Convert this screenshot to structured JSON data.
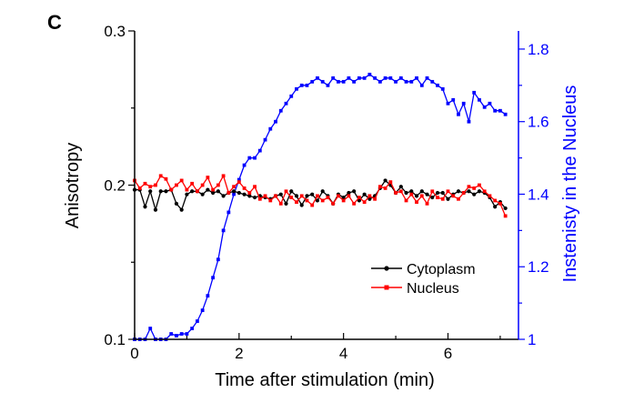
{
  "chart_data": {
    "type": "line",
    "panel_label": "C",
    "xlabel": "Time after stimulation (min)",
    "ylabel": "Anisotropy",
    "y2label": "Instenisty in the Nucleus",
    "xlim": [
      0,
      7.35
    ],
    "ylim": [
      0.1,
      0.3
    ],
    "y2lim": [
      1.0,
      1.85
    ],
    "xticks": [
      0,
      2,
      4,
      6
    ],
    "yticks": [
      0.1,
      0.2,
      0.3
    ],
    "y2ticks": [
      1,
      1.2,
      1.4,
      1.6,
      1.8
    ],
    "legend_position": "lower-right",
    "colors": {
      "cytoplasm": "#000000",
      "nucleus": "#ff0000",
      "intensity": "#0000ff",
      "right_axis": "#0000ff"
    },
    "series": [
      {
        "name": "Cytoplasm",
        "axis": "left",
        "marker": "circle",
        "x": [
          0.0,
          0.1,
          0.2,
          0.3,
          0.4,
          0.5,
          0.6,
          0.7,
          0.8,
          0.9,
          1.0,
          1.1,
          1.2,
          1.3,
          1.4,
          1.5,
          1.6,
          1.7,
          1.8,
          1.9,
          2.0,
          2.1,
          2.2,
          2.3,
          2.4,
          2.5,
          2.6,
          2.7,
          2.8,
          2.9,
          3.0,
          3.1,
          3.2,
          3.3,
          3.4,
          3.5,
          3.6,
          3.7,
          3.8,
          3.9,
          4.0,
          4.1,
          4.2,
          4.3,
          4.4,
          4.5,
          4.6,
          4.7,
          4.8,
          4.9,
          5.0,
          5.1,
          5.2,
          5.3,
          5.4,
          5.5,
          5.6,
          5.7,
          5.8,
          5.9,
          6.0,
          6.1,
          6.2,
          6.3,
          6.4,
          6.5,
          6.6,
          6.7,
          6.8,
          6.9,
          7.0,
          7.1
        ],
        "y": [
          0.197,
          0.197,
          0.186,
          0.196,
          0.184,
          0.196,
          0.196,
          0.197,
          0.188,
          0.184,
          0.194,
          0.196,
          0.196,
          0.194,
          0.197,
          0.195,
          0.196,
          0.193,
          0.195,
          0.196,
          0.195,
          0.194,
          0.193,
          0.192,
          0.193,
          0.192,
          0.191,
          0.193,
          0.194,
          0.188,
          0.196,
          0.193,
          0.187,
          0.193,
          0.194,
          0.19,
          0.196,
          0.193,
          0.188,
          0.194,
          0.192,
          0.195,
          0.196,
          0.19,
          0.194,
          0.191,
          0.193,
          0.198,
          0.203,
          0.2,
          0.195,
          0.199,
          0.195,
          0.196,
          0.193,
          0.196,
          0.194,
          0.192,
          0.195,
          0.195,
          0.191,
          0.194,
          0.196,
          0.195,
          0.196,
          0.194,
          0.196,
          0.195,
          0.192,
          0.186,
          0.189,
          0.185
        ]
      },
      {
        "name": "Nucleus",
        "axis": "left",
        "marker": "square",
        "x": [
          0.0,
          0.1,
          0.2,
          0.3,
          0.4,
          0.5,
          0.6,
          0.7,
          0.8,
          0.9,
          1.0,
          1.1,
          1.2,
          1.3,
          1.4,
          1.5,
          1.6,
          1.7,
          1.8,
          1.9,
          2.0,
          2.1,
          2.2,
          2.3,
          2.4,
          2.5,
          2.6,
          2.7,
          2.8,
          2.9,
          3.0,
          3.1,
          3.2,
          3.3,
          3.4,
          3.5,
          3.6,
          3.7,
          3.8,
          3.9,
          4.0,
          4.1,
          4.2,
          4.3,
          4.4,
          4.5,
          4.6,
          4.7,
          4.8,
          4.9,
          5.0,
          5.1,
          5.2,
          5.3,
          5.4,
          5.5,
          5.6,
          5.7,
          5.8,
          5.9,
          6.0,
          6.1,
          6.2,
          6.3,
          6.4,
          6.5,
          6.6,
          6.7,
          6.8,
          6.9,
          7.0,
          7.1
        ],
        "y": [
          0.203,
          0.198,
          0.201,
          0.199,
          0.2,
          0.206,
          0.204,
          0.197,
          0.2,
          0.203,
          0.197,
          0.201,
          0.196,
          0.2,
          0.205,
          0.197,
          0.2,
          0.206,
          0.195,
          0.199,
          0.202,
          0.198,
          0.195,
          0.199,
          0.191,
          0.193,
          0.19,
          0.193,
          0.188,
          0.196,
          0.192,
          0.189,
          0.193,
          0.19,
          0.187,
          0.193,
          0.19,
          0.192,
          0.188,
          0.193,
          0.19,
          0.193,
          0.188,
          0.192,
          0.189,
          0.193,
          0.191,
          0.199,
          0.198,
          0.202,
          0.195,
          0.196,
          0.19,
          0.194,
          0.189,
          0.193,
          0.188,
          0.196,
          0.192,
          0.191,
          0.196,
          0.193,
          0.191,
          0.195,
          0.199,
          0.198,
          0.2,
          0.196,
          0.193,
          0.19,
          0.188,
          0.18
        ]
      },
      {
        "name": "Instenisty in the Nucleus",
        "axis": "right",
        "marker": "square",
        "x": [
          0.0,
          0.1,
          0.2,
          0.3,
          0.4,
          0.5,
          0.6,
          0.7,
          0.8,
          0.9,
          1.0,
          1.1,
          1.2,
          1.3,
          1.4,
          1.5,
          1.6,
          1.7,
          1.8,
          1.9,
          2.0,
          2.1,
          2.2,
          2.3,
          2.4,
          2.5,
          2.6,
          2.7,
          2.8,
          2.9,
          3.0,
          3.1,
          3.2,
          3.3,
          3.4,
          3.5,
          3.6,
          3.7,
          3.8,
          3.9,
          4.0,
          4.1,
          4.2,
          4.3,
          4.4,
          4.5,
          4.6,
          4.7,
          4.8,
          4.9,
          5.0,
          5.1,
          5.2,
          5.3,
          5.4,
          5.5,
          5.6,
          5.7,
          5.8,
          5.9,
          6.0,
          6.1,
          6.2,
          6.3,
          6.4,
          6.5,
          6.6,
          6.7,
          6.8,
          6.9,
          7.0,
          7.1
        ],
        "y": [
          1.0,
          1.0,
          1.0,
          1.03,
          1.0,
          1.0,
          1.0,
          1.015,
          1.01,
          1.015,
          1.015,
          1.03,
          1.05,
          1.08,
          1.12,
          1.17,
          1.22,
          1.3,
          1.35,
          1.4,
          1.44,
          1.48,
          1.5,
          1.5,
          1.52,
          1.55,
          1.58,
          1.6,
          1.63,
          1.65,
          1.67,
          1.69,
          1.7,
          1.7,
          1.71,
          1.72,
          1.71,
          1.7,
          1.72,
          1.71,
          1.71,
          1.72,
          1.71,
          1.72,
          1.72,
          1.73,
          1.72,
          1.71,
          1.72,
          1.72,
          1.71,
          1.72,
          1.71,
          1.71,
          1.72,
          1.7,
          1.72,
          1.71,
          1.7,
          1.69,
          1.65,
          1.66,
          1.62,
          1.65,
          1.6,
          1.68,
          1.66,
          1.64,
          1.65,
          1.63,
          1.63,
          1.62
        ]
      }
    ]
  }
}
